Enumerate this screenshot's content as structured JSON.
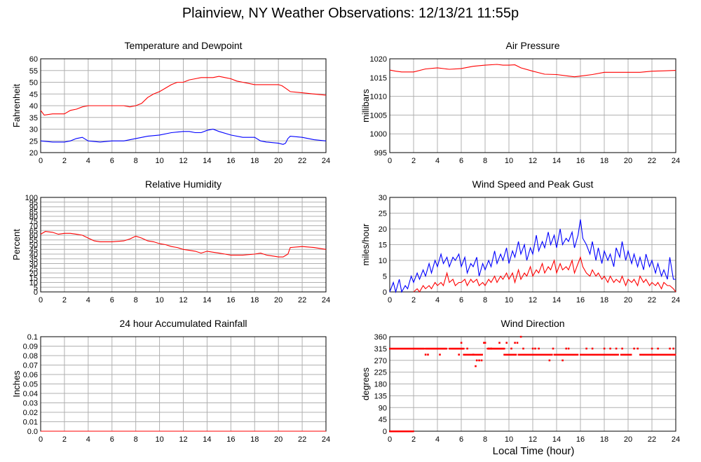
{
  "page": {
    "title": "Plainview, NY Weather Observations: 12/13/21 11:55p",
    "xaxis_title": "Local Time (hour)"
  },
  "colors": {
    "primary": "#ff0000",
    "secondary": "#0000ff",
    "grid": "#b0b0b0"
  },
  "chart_data": [
    {
      "id": "temp",
      "type": "line",
      "title": "Temperature and Dewpoint",
      "ylabel": "Fahrenheit",
      "ylim": [
        20,
        60
      ],
      "yticks": [
        20,
        25,
        30,
        35,
        40,
        45,
        50,
        55,
        60
      ],
      "xlim": [
        0,
        24
      ],
      "xticks": [
        0,
        2,
        4,
        6,
        8,
        10,
        12,
        14,
        16,
        18,
        20,
        22,
        24
      ],
      "grid": true,
      "series": [
        {
          "color": "#ff0000",
          "x": [
            0,
            0.3,
            1,
            2,
            2.5,
            3,
            3.5,
            4,
            5,
            6,
            7,
            7.5,
            8,
            8.5,
            9,
            9.5,
            10,
            10.5,
            11,
            11.5,
            12,
            12.5,
            13,
            13.5,
            14,
            14.5,
            15,
            15.5,
            16,
            16.5,
            17,
            17.5,
            18,
            18.5,
            19,
            19.5,
            20,
            20.3,
            20.6,
            21,
            22,
            23,
            24
          ],
          "y": [
            38,
            36,
            36.5,
            36.5,
            38,
            38.5,
            39.5,
            40,
            40,
            40,
            40,
            39.5,
            40,
            41,
            43.5,
            45,
            46,
            47.5,
            49,
            50,
            50,
            51,
            51.5,
            52,
            52,
            52,
            52.5,
            52,
            51.5,
            50.5,
            50,
            49.5,
            49,
            49,
            49,
            49,
            49,
            48.5,
            47.5,
            46,
            45.5,
            45,
            44.5
          ]
        },
        {
          "color": "#0000ff",
          "x": [
            0,
            1,
            2,
            2.5,
            3,
            3.5,
            4,
            5,
            6,
            7,
            8,
            9,
            10,
            11,
            12,
            12.5,
            13,
            13.5,
            14,
            14.5,
            15,
            16,
            17,
            18,
            18.5,
            19,
            20,
            20.4,
            20.6,
            20.8,
            21,
            22,
            23,
            24
          ],
          "y": [
            25,
            24.5,
            24.5,
            25,
            26,
            26.5,
            25,
            24.5,
            25,
            25,
            26,
            27,
            27.5,
            28.5,
            29,
            29,
            28.5,
            28.5,
            29.5,
            30,
            29,
            27.5,
            26.5,
            26.5,
            25,
            24.5,
            24,
            23.5,
            24,
            26,
            27,
            26.5,
            25.5,
            25
          ]
        }
      ]
    },
    {
      "id": "pressure",
      "type": "line",
      "title": "Air Pressure",
      "ylabel": "millibars",
      "ylim": [
        995,
        1020
      ],
      "yticks": [
        995,
        1000,
        1005,
        1010,
        1015,
        1020
      ],
      "xlim": [
        0,
        24
      ],
      "xticks": [
        0,
        2,
        4,
        6,
        8,
        10,
        12,
        14,
        16,
        18,
        20,
        22,
        24
      ],
      "grid": true,
      "series": [
        {
          "color": "#ff0000",
          "x": [
            0,
            0.5,
            1,
            2,
            3,
            4,
            5,
            6,
            7,
            8,
            9,
            9.5,
            10,
            10.5,
            11,
            12,
            13,
            14,
            15,
            15.5,
            16,
            17,
            18,
            19,
            20,
            21,
            22,
            23,
            24
          ],
          "y": [
            1017,
            1016.7,
            1016.5,
            1016.5,
            1017.3,
            1017.6,
            1017.2,
            1017.4,
            1018,
            1018.3,
            1018.5,
            1018.3,
            1018.3,
            1018.4,
            1017.6,
            1016.7,
            1015.9,
            1015.8,
            1015.4,
            1015.2,
            1015.4,
            1015.8,
            1016.4,
            1016.4,
            1016.4,
            1016.4,
            1016.7,
            1016.8,
            1016.9
          ]
        }
      ]
    },
    {
      "id": "humidity",
      "type": "line",
      "title": "Relative Humidity",
      "ylabel": "Percent",
      "ylim": [
        0,
        100
      ],
      "yticks": [
        0,
        5,
        10,
        15,
        20,
        25,
        30,
        35,
        40,
        45,
        50,
        55,
        60,
        65,
        70,
        75,
        80,
        85,
        90,
        95,
        100
      ],
      "xlim": [
        0,
        24
      ],
      "xticks": [
        0,
        2,
        4,
        6,
        8,
        10,
        12,
        14,
        16,
        18,
        20,
        22,
        24
      ],
      "grid": true,
      "series": [
        {
          "color": "#ff0000",
          "x": [
            0,
            0.4,
            1,
            1.5,
            2,
            2.5,
            3,
            3.5,
            4,
            4.5,
            5,
            6,
            7,
            7.5,
            8,
            8.5,
            9,
            9.5,
            10,
            10.5,
            11,
            11.5,
            12,
            12.5,
            13,
            13.5,
            14,
            14.5,
            15,
            15.5,
            16,
            17,
            18,
            18.5,
            19,
            19.5,
            20,
            20.4,
            20.8,
            21,
            22,
            23,
            24
          ],
          "y": [
            61,
            64,
            63,
            61,
            62,
            62,
            61,
            60,
            57,
            54,
            53,
            53,
            54,
            56,
            59,
            57,
            54,
            53,
            51,
            50,
            48,
            47,
            45,
            44,
            43,
            41,
            43,
            42,
            41,
            40,
            39,
            39,
            40,
            41,
            39,
            38,
            37,
            37,
            40,
            47,
            48,
            47,
            45
          ]
        }
      ]
    },
    {
      "id": "wind",
      "type": "line",
      "title": "Wind Speed and Peak Gust",
      "ylabel": "miles/hour",
      "ylim": [
        0,
        30
      ],
      "yticks": [
        0,
        5,
        10,
        15,
        20,
        25,
        30
      ],
      "xlim": [
        0,
        24
      ],
      "xticks": [
        0,
        2,
        4,
        6,
        8,
        10,
        12,
        14,
        16,
        18,
        20,
        22,
        24
      ],
      "grid": true,
      "series": [
        {
          "color": "#0000ff",
          "x": [
            0,
            0.3,
            0.5,
            0.8,
            1,
            1.3,
            1.5,
            1.8,
            2,
            2.3,
            2.5,
            2.8,
            3,
            3.3,
            3.5,
            3.8,
            4,
            4.3,
            4.5,
            4.8,
            5,
            5.3,
            5.5,
            5.8,
            6,
            6.3,
            6.5,
            6.8,
            7,
            7.3,
            7.5,
            7.8,
            8,
            8.3,
            8.5,
            8.8,
            9,
            9.3,
            9.5,
            9.8,
            10,
            10.3,
            10.5,
            10.8,
            11,
            11.3,
            11.5,
            11.8,
            12,
            12.3,
            12.5,
            12.8,
            13,
            13.3,
            13.5,
            13.8,
            14,
            14.3,
            14.5,
            14.8,
            15,
            15.3,
            15.5,
            15.8,
            16,
            16.2,
            16.5,
            16.8,
            17,
            17.3,
            17.5,
            17.8,
            18,
            18.3,
            18.5,
            18.8,
            19,
            19.3,
            19.5,
            19.8,
            20,
            20.3,
            20.5,
            20.8,
            21,
            21.3,
            21.5,
            21.8,
            22,
            22.3,
            22.5,
            22.8,
            23,
            23.3,
            23.5,
            23.8,
            24
          ],
          "y": [
            0,
            3,
            0,
            4,
            0,
            2,
            1,
            5,
            3,
            6,
            4,
            7,
            5,
            9,
            6,
            10,
            8,
            12,
            9,
            11,
            8,
            11,
            10,
            12,
            8,
            11,
            6,
            9,
            8,
            11,
            5,
            9,
            7,
            10,
            8,
            13,
            9,
            12,
            10,
            14,
            9,
            13,
            11,
            16,
            12,
            15,
            10,
            14,
            12,
            18,
            13,
            16,
            14,
            19,
            15,
            18,
            14,
            20,
            15,
            17,
            16,
            19,
            14,
            18,
            23,
            17,
            15,
            12,
            16,
            10,
            14,
            9,
            13,
            10,
            12,
            8,
            14,
            11,
            16,
            10,
            13,
            9,
            12,
            8,
            11,
            7,
            12,
            8,
            10,
            6,
            9,
            5,
            7,
            4,
            11,
            4,
            4
          ]
        },
        {
          "color": "#ff0000",
          "x": [
            2,
            2.3,
            2.5,
            2.8,
            3,
            3.3,
            3.5,
            3.8,
            4,
            4.3,
            4.5,
            4.8,
            5,
            5.3,
            5.5,
            5.8,
            6,
            6.3,
            6.5,
            6.8,
            7,
            7.3,
            7.5,
            7.8,
            8,
            8.3,
            8.5,
            8.8,
            9,
            9.3,
            9.5,
            9.8,
            10,
            10.3,
            10.5,
            10.8,
            11,
            11.3,
            11.5,
            11.8,
            12,
            12.3,
            12.5,
            12.8,
            13,
            13.3,
            13.5,
            13.8,
            14,
            14.3,
            14.5,
            14.8,
            15,
            15.3,
            15.5,
            15.8,
            16,
            16.2,
            16.5,
            16.8,
            17,
            17.3,
            17.5,
            17.8,
            18,
            18.3,
            18.5,
            18.8,
            19,
            19.3,
            19.5,
            19.8,
            20,
            20.3,
            20.5,
            20.8,
            21,
            21.3,
            21.5,
            21.8,
            22,
            22.3,
            22.5,
            22.8,
            23,
            23.3,
            23.5,
            23.8,
            24
          ],
          "y": [
            0,
            1,
            0,
            2,
            1,
            2,
            1,
            3,
            2,
            3,
            2,
            6,
            3,
            4,
            2,
            3,
            3,
            4,
            2,
            4,
            3,
            4,
            2,
            3,
            2,
            4,
            3,
            5,
            3,
            5,
            4,
            6,
            4,
            6,
            3,
            7,
            4,
            6,
            5,
            8,
            5,
            7,
            6,
            9,
            6,
            8,
            7,
            10,
            6,
            9,
            7,
            8,
            7,
            10,
            6,
            9,
            11,
            8,
            6,
            5,
            7,
            5,
            6,
            4,
            5,
            3,
            5,
            3,
            4,
            3,
            5,
            2,
            4,
            3,
            4,
            2,
            5,
            3,
            4,
            2,
            3,
            2,
            3,
            1,
            3,
            2,
            2,
            1,
            0
          ]
        }
      ]
    },
    {
      "id": "rain",
      "type": "line",
      "title": "24 hour Accumulated Rainfall",
      "ylabel": "Inches",
      "ylim": [
        0,
        0.1
      ],
      "yticks": [
        "0.0",
        "0.01",
        "0.02",
        "0.03",
        "0.04",
        "0.05",
        "0.06",
        "0.07",
        "0.08",
        "0.09",
        "0.1"
      ],
      "xlim": [
        0,
        24
      ],
      "xticks": [
        0,
        2,
        4,
        6,
        8,
        10,
        12,
        14,
        16,
        18,
        20,
        22,
        24
      ],
      "grid": true,
      "series": [
        {
          "color": "#ff0000",
          "x": [
            0,
            24
          ],
          "y": [
            0,
            0
          ]
        }
      ]
    },
    {
      "id": "direction",
      "type": "scatter",
      "title": "Wind Direction",
      "ylabel": "degrees",
      "ylim": [
        0,
        360
      ],
      "yticks": [
        0,
        45,
        90,
        135,
        180,
        225,
        270,
        315,
        360
      ],
      "xlim": [
        0,
        24
      ],
      "xticks": [
        0,
        2,
        4,
        6,
        8,
        10,
        12,
        14,
        16,
        18,
        20,
        22,
        24
      ],
      "grid": true,
      "series": [
        {
          "color": "#ff0000",
          "runs": [
            {
              "x0": 0,
              "x1": 2,
              "y": 0
            },
            {
              "x0": 0,
              "x1": 2.9,
              "y": 315
            },
            {
              "x0": 3,
              "x1": 4.8,
              "y": 315
            },
            {
              "x0": 5,
              "x1": 6.2,
              "y": 315
            },
            {
              "x0": 6.2,
              "x1": 7.8,
              "y": 292
            },
            {
              "x0": 8.2,
              "x1": 9.6,
              "y": 315
            },
            {
              "x0": 9.6,
              "x1": 10.6,
              "y": 292
            },
            {
              "x0": 10.8,
              "x1": 13.6,
              "y": 292
            },
            {
              "x0": 13.8,
              "x1": 15.8,
              "y": 292
            },
            {
              "x0": 16,
              "x1": 19.2,
              "y": 292
            },
            {
              "x0": 19.4,
              "x1": 20.3,
              "y": 292
            },
            {
              "x0": 21,
              "x1": 24,
              "y": 292
            }
          ],
          "x": [
            3,
            3.2,
            4.2,
            5.8,
            6,
            6.5,
            7,
            7.2,
            7.3,
            7.5,
            7.7,
            7.9,
            8,
            8.3,
            8.5,
            9.2,
            9.8,
            10.2,
            10.5,
            10.7,
            11,
            11.2,
            12,
            12.2,
            12.5,
            13.4,
            13.7,
            14.5,
            14.8,
            15,
            16.5,
            17,
            18,
            18.5,
            19,
            19.5,
            20.5,
            20.8,
            22,
            22.5,
            23.5,
            23.8
          ],
          "y": [
            292,
            292,
            292,
            292,
            337,
            315,
            292,
            248,
            270,
            270,
            270,
            337,
            337,
            315,
            315,
            337,
            337,
            315,
            337,
            337,
            360,
            315,
            315,
            315,
            315,
            270,
            315,
            270,
            315,
            315,
            315,
            315,
            315,
            315,
            315,
            315,
            315,
            315,
            315,
            315,
            315,
            315
          ]
        }
      ]
    }
  ]
}
